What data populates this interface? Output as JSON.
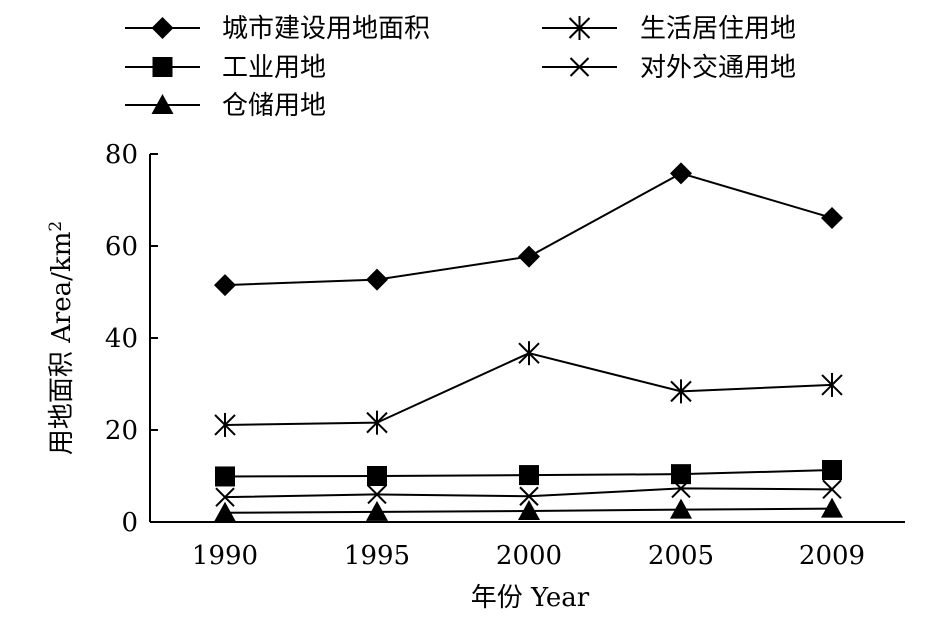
{
  "chart_data": {
    "type": "line",
    "x": [
      "1990",
      "1995",
      "2000",
      "2005",
      "2009"
    ],
    "xlabel": "年份 Year",
    "ylabel": "用地面积 Area/km",
    "ylabel_sup": "2",
    "ylim": [
      0,
      80
    ],
    "yticks": [
      0,
      20,
      40,
      60,
      80
    ],
    "grid": false,
    "legend_position": "top",
    "series": [
      {
        "name": "城市建设用地面积",
        "marker": "diamond",
        "values": [
          51.5,
          52.7,
          57.7,
          75.8,
          66.1
        ]
      },
      {
        "name": "工业用地",
        "marker": "square",
        "values": [
          9.9,
          10.0,
          10.2,
          10.4,
          11.3
        ]
      },
      {
        "name": "仓储用地",
        "marker": "triangle",
        "values": [
          2.0,
          2.2,
          2.4,
          2.7,
          2.9
        ]
      },
      {
        "name": "生活居住用地",
        "marker": "asterisk",
        "values": [
          21.1,
          21.6,
          36.7,
          28.4,
          29.8
        ]
      },
      {
        "name": "对外交通用地",
        "marker": "cross",
        "values": [
          5.4,
          6.0,
          5.6,
          7.3,
          7.1
        ]
      }
    ]
  }
}
